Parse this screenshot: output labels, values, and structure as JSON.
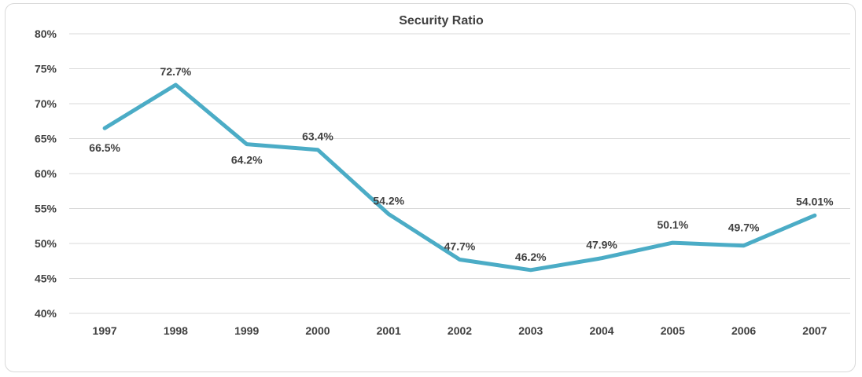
{
  "chart_data": {
    "type": "line",
    "title": "Security Ratio",
    "xlabel": "",
    "ylabel": "",
    "categories": [
      "1997",
      "1998",
      "1999",
      "2000",
      "2001",
      "2002",
      "2003",
      "2004",
      "2005",
      "2006",
      "2007"
    ],
    "series": [
      {
        "values": [
          66.5,
          72.7,
          64.2,
          63.4,
          54.2,
          47.7,
          46.2,
          47.9,
          50.1,
          49.7,
          54.01
        ],
        "labels": [
          "66.5%",
          "72.7%",
          "64.2%",
          "63.4%",
          "54.2%",
          "47.7%",
          "46.2%",
          "47.9%",
          "50.1%",
          "49.7%",
          "54.01%"
        ],
        "color": "#4bacc6"
      }
    ],
    "ylim": [
      40,
      80
    ],
    "yticks": [
      40,
      45,
      50,
      55,
      60,
      65,
      70,
      75,
      80
    ],
    "ytick_labels": [
      "40%",
      "45%",
      "50%",
      "55%",
      "60%",
      "65%",
      "70%",
      "75%",
      "80%"
    ],
    "grid": true,
    "legend": "none"
  }
}
